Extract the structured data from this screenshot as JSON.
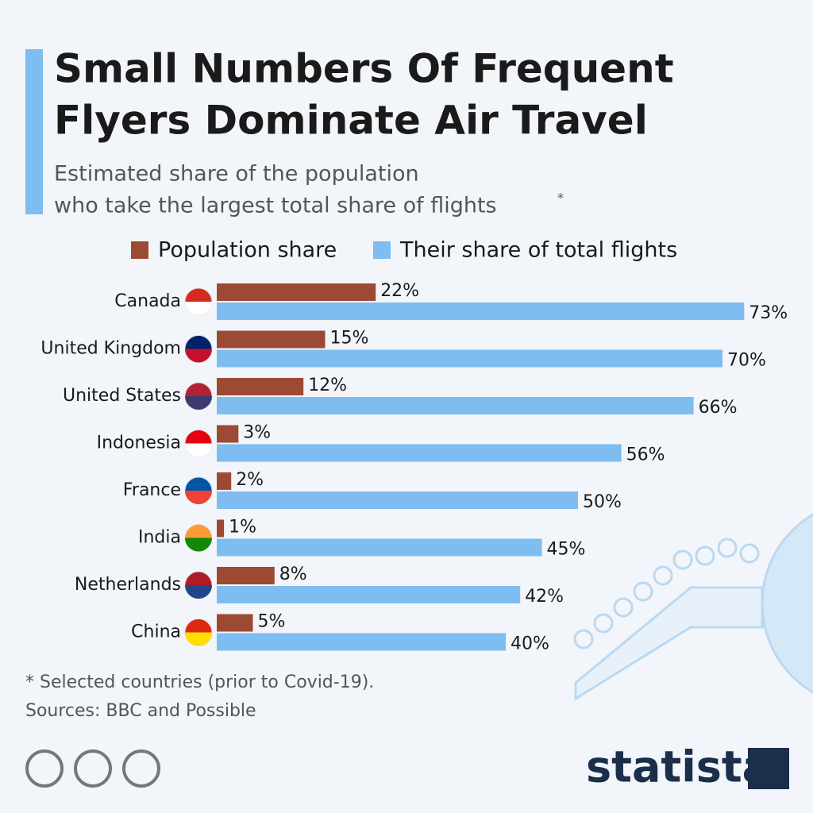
{
  "chart_data": {
    "type": "bar",
    "orientation": "horizontal",
    "title": [
      "Small Numbers Of Frequent",
      "Flyers Dominate Air Travel"
    ],
    "subtitle": [
      "Estimated share of the population",
      "who take the largest total share of flights"
    ],
    "subtitle_marker": "*",
    "categories": [
      "Canada",
      "United Kingdom",
      "United States",
      "Indonesia",
      "France",
      "India",
      "Netherlands",
      "China"
    ],
    "series": [
      {
        "name": "Population share",
        "color": "#9c4a34",
        "values": [
          22,
          15,
          12,
          3,
          2,
          1,
          8,
          5
        ],
        "value_labels": [
          "22%",
          "15%",
          "12%",
          "3%",
          "2%",
          "1%",
          "8%",
          "5%"
        ]
      },
      {
        "name": "Their share of total flights",
        "color": "#7dbdf0",
        "values": [
          73,
          70,
          66,
          56,
          50,
          45,
          42,
          40
        ],
        "value_labels": [
          "73%",
          "70%",
          "66%",
          "56%",
          "50%",
          "45%",
          "42%",
          "40%"
        ]
      }
    ],
    "footnote": "* Selected countries (prior to Covid-19).",
    "source": "Sources: BBC and Possible",
    "brand": "statista"
  }
}
